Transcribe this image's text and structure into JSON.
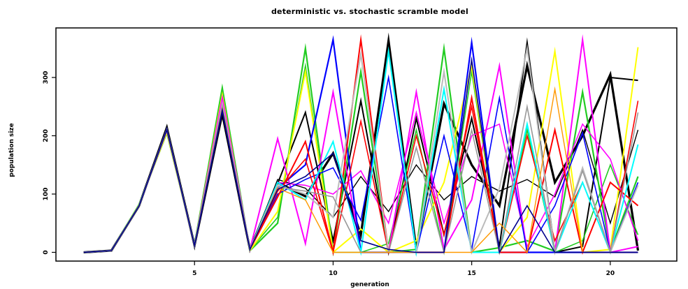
{
  "chart_data": {
    "type": "line",
    "title": "deterministic vs. stochastic scramble model",
    "xlabel": "generation",
    "ylabel": "population size",
    "xlim": [
      0.0,
      22.4
    ],
    "ylim": [
      -15,
      385
    ],
    "x_ticks": [
      5,
      10,
      15,
      20
    ],
    "y_ticks": [
      0,
      100,
      200,
      300
    ],
    "grid": false,
    "legend": "none",
    "x": [
      1,
      2,
      3,
      4,
      5,
      6,
      7,
      8,
      9,
      10,
      11,
      12,
      13,
      14,
      15,
      16,
      17,
      18,
      19,
      20,
      21
    ],
    "series": [
      {
        "color": "#000000",
        "width": 3.2,
        "values": [
          0,
          3,
          80,
          214,
          12,
          238,
          5,
          120,
          96,
          170,
          30,
          363,
          5,
          255,
          150,
          80,
          320,
          120,
          200,
          305,
          3
        ]
      },
      {
        "color": "#000000",
        "width": 1.4,
        "values": [
          0,
          3,
          78,
          210,
          11,
          242,
          5,
          125,
          110,
          60,
          130,
          70,
          150,
          90,
          130,
          105,
          125,
          95,
          210,
          50,
          210
        ]
      },
      {
        "color": "#000000",
        "width": 2.0,
        "values": [
          0,
          3,
          79,
          212,
          12,
          240,
          5,
          118,
          240,
          20,
          260,
          0,
          230,
          30,
          230,
          10,
          360,
          0,
          10,
          300,
          295
        ]
      },
      {
        "color": "#22cc22",
        "width": 2.2,
        "values": [
          0,
          3,
          82,
          205,
          13,
          282,
          3,
          50,
          350,
          2,
          310,
          0,
          5,
          350,
          0,
          8,
          20,
          2,
          275,
          2,
          130
        ]
      },
      {
        "color": "#22cc22",
        "width": 1.6,
        "values": [
          0,
          3,
          80,
          208,
          12,
          275,
          4,
          60,
          320,
          0,
          0,
          15,
          210,
          0,
          310,
          0,
          210,
          0,
          20,
          150,
          30
        ]
      },
      {
        "color": "#ffff00",
        "width": 2.0,
        "values": [
          0,
          3,
          81,
          206,
          12,
          270,
          3,
          70,
          310,
          0,
          40,
          0,
          20,
          120,
          320,
          0,
          60,
          345,
          0,
          5,
          352
        ]
      },
      {
        "color": "#ff00ff",
        "width": 2.0,
        "values": [
          0,
          3,
          80,
          209,
          12,
          265,
          5,
          195,
          15,
          275,
          0,
          0,
          275,
          5,
          90,
          320,
          0,
          0,
          365,
          0,
          10
        ]
      },
      {
        "color": "#ff00ff",
        "width": 1.6,
        "values": [
          0,
          3,
          80,
          210,
          12,
          260,
          5,
          120,
          115,
          100,
          140,
          50,
          240,
          50,
          200,
          220,
          10,
          100,
          220,
          160,
          20
        ]
      },
      {
        "color": "#0000ff",
        "width": 2.2,
        "values": [
          0,
          3,
          80,
          211,
          12,
          245,
          5,
          110,
          150,
          365,
          0,
          0,
          0,
          0,
          360,
          0,
          0,
          0,
          0,
          0,
          0
        ]
      },
      {
        "color": "#0000ff",
        "width": 1.6,
        "values": [
          0,
          3,
          80,
          212,
          12,
          244,
          5,
          100,
          125,
          145,
          55,
          300,
          0,
          200,
          5,
          265,
          0,
          80,
          205,
          0,
          120
        ]
      },
      {
        "color": "#ff0000",
        "width": 2.0,
        "values": [
          0,
          3,
          80,
          210,
          12,
          248,
          5,
          95,
          190,
          0,
          365,
          0,
          0,
          0,
          265,
          0,
          0,
          210,
          0,
          120,
          80
        ]
      },
      {
        "color": "#ff0000",
        "width": 1.6,
        "values": [
          0,
          3,
          80,
          209,
          12,
          250,
          5,
          105,
          160,
          0,
          225,
          0,
          200,
          30,
          250,
          0,
          200,
          20,
          120,
          0,
          260
        ]
      },
      {
        "color": "#00ffff",
        "width": 2.0,
        "values": [
          0,
          3,
          80,
          210,
          12,
          252,
          5,
          120,
          90,
          190,
          0,
          345,
          0,
          280,
          0,
          0,
          220,
          0,
          120,
          0,
          185
        ]
      },
      {
        "color": "#bbbbbb",
        "width": 2.0,
        "values": [
          0,
          3,
          80,
          210,
          12,
          255,
          5,
          115,
          100,
          60,
          340,
          0,
          0,
          310,
          0,
          110,
          350,
          0,
          145,
          0,
          115
        ]
      },
      {
        "color": "#999999",
        "width": 1.6,
        "values": [
          0,
          3,
          80,
          210,
          12,
          250,
          5,
          112,
          105,
          95,
          0,
          0,
          180,
          0,
          210,
          0,
          250,
          0,
          140,
          0,
          240
        ]
      },
      {
        "color": "#ff9900",
        "width": 1.4,
        "values": [
          0,
          3,
          80,
          210,
          12,
          246,
          5,
          110,
          90,
          0,
          0,
          0,
          0,
          0,
          0,
          50,
          0,
          280,
          0,
          0,
          0
        ]
      },
      {
        "color": "#00008b",
        "width": 1.6,
        "values": [
          0,
          3,
          80,
          210,
          12,
          244,
          5,
          108,
          130,
          170,
          20,
          5,
          0,
          0,
          330,
          0,
          80,
          0,
          0,
          0,
          0
        ]
      }
    ]
  }
}
